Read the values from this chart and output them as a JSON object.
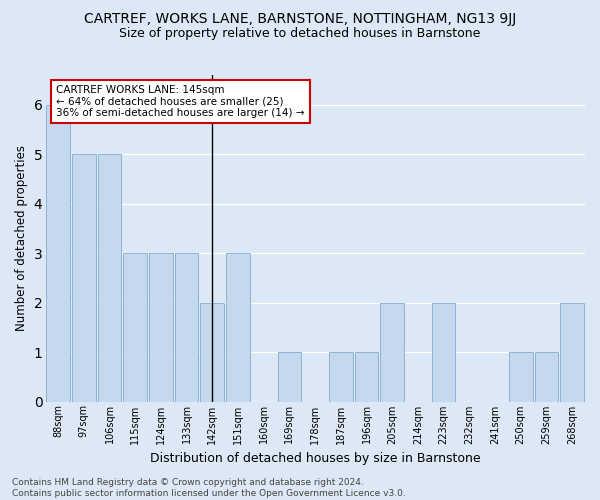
{
  "title": "CARTREF, WORKS LANE, BARNSTONE, NOTTINGHAM, NG13 9JJ",
  "subtitle": "Size of property relative to detached houses in Barnstone",
  "xlabel": "Distribution of detached houses by size in Barnstone",
  "ylabel": "Number of detached properties",
  "categories": [
    "88sqm",
    "97sqm",
    "106sqm",
    "115sqm",
    "124sqm",
    "133sqm",
    "142sqm",
    "151sqm",
    "160sqm",
    "169sqm",
    "178sqm",
    "187sqm",
    "196sqm",
    "205sqm",
    "214sqm",
    "223sqm",
    "232sqm",
    "241sqm",
    "250sqm",
    "259sqm",
    "268sqm"
  ],
  "values": [
    6,
    5,
    5,
    3,
    3,
    3,
    2,
    3,
    0,
    1,
    0,
    1,
    1,
    2,
    0,
    2,
    0,
    0,
    1,
    1,
    2
  ],
  "highlight_index": 6,
  "bar_color": "#c5d8ed",
  "bar_edge_color": "#8ab4d4",
  "background_color": "#dce8f5",
  "grid_color": "#ffffff",
  "annotation_text": "CARTREF WORKS LANE: 145sqm\n← 64% of detached houses are smaller (25)\n36% of semi-detached houses are larger (14) →",
  "annotation_box_facecolor": "#ffffff",
  "annotation_box_edgecolor": "#cc0000",
  "footer_text": "Contains HM Land Registry data © Crown copyright and database right 2024.\nContains public sector information licensed under the Open Government Licence v3.0.",
  "title_fontsize": 10,
  "subtitle_fontsize": 9,
  "ylabel_fontsize": 8.5,
  "xlabel_fontsize": 9,
  "tick_fontsize": 7,
  "annotation_fontsize": 7.5,
  "footer_fontsize": 6.5,
  "ylim": [
    0,
    6.6
  ],
  "yticks": [
    0,
    1,
    2,
    3,
    4,
    5,
    6
  ]
}
